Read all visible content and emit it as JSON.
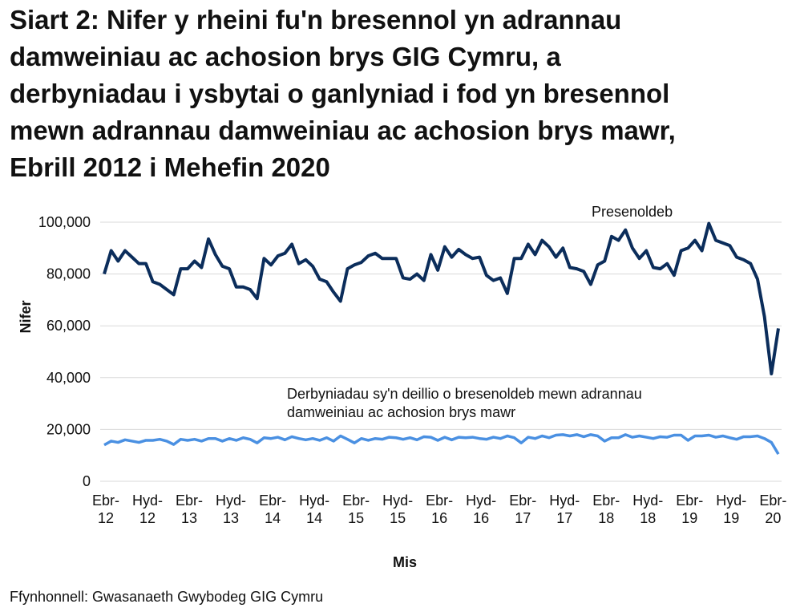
{
  "chart_data": {
    "type": "line",
    "title": "Siart 2: Nifer y rheini fu'n bresennol yn adrannau\ndamweiniau ac achosion brys GIG Cymru, a\nderbyniadau i ysbytai o ganlyniad i fod yn bresennol\nmewn adrannau damweiniau ac achosion brys mawr,\nEbrill 2012 i Mehefin 2020",
    "x_label": "Mis",
    "y_label": "Nifer",
    "source": "Ffynhonnell: Gwasanaeth Gwybodeg GIG Cymru",
    "categories": [
      "Ebr-\n12",
      null,
      null,
      null,
      null,
      null,
      "Hyd-\n12",
      null,
      null,
      null,
      null,
      null,
      "Ebr-\n13",
      null,
      null,
      null,
      null,
      null,
      "Hyd-\n13",
      null,
      null,
      null,
      null,
      null,
      "Ebr-\n14",
      null,
      null,
      null,
      null,
      null,
      "Hyd-\n14",
      null,
      null,
      null,
      null,
      null,
      "Ebr-\n15",
      null,
      null,
      null,
      null,
      null,
      "Hyd-\n15",
      null,
      null,
      null,
      null,
      null,
      "Ebr-\n16",
      null,
      null,
      null,
      null,
      null,
      "Hyd-\n16",
      null,
      null,
      null,
      null,
      null,
      "Ebr-\n17",
      null,
      null,
      null,
      null,
      null,
      "Hyd-\n17",
      null,
      null,
      null,
      null,
      null,
      "Ebr-\n18",
      null,
      null,
      null,
      null,
      null,
      "Hyd-\n18",
      null,
      null,
      null,
      null,
      null,
      "Ebr-\n19",
      null,
      null,
      null,
      null,
      null,
      "Hyd-\n19",
      null,
      null,
      null,
      null,
      null,
      "Ebr-\n20",
      null
    ],
    "series": [
      {
        "name": "Presenoldeb",
        "color": "#0b2d5b",
        "values": [
          80000,
          89000,
          85000,
          89000,
          86500,
          84000,
          84000,
          77000,
          76000,
          74000,
          72000,
          82000,
          82000,
          85000,
          82500,
          93500,
          87500,
          83000,
          82000,
          75000,
          75000,
          74000,
          70500,
          86000,
          83500,
          87000,
          88000,
          91500,
          84000,
          85500,
          83000,
          78000,
          77000,
          73000,
          69500,
          82000,
          83500,
          84500,
          87000,
          88000,
          86000,
          86000,
          86000,
          78500,
          78000,
          80000,
          77500,
          87500,
          81500,
          90500,
          86500,
          89500,
          87500,
          86000,
          86500,
          79500,
          77500,
          78500,
          72500,
          86000,
          86000,
          91500,
          87500,
          93000,
          90500,
          86500,
          90000,
          82500,
          82000,
          81000,
          76000,
          83500,
          85000,
          94500,
          93000,
          97000,
          90000,
          86000,
          89000,
          82500,
          82000,
          84000,
          79500,
          89000,
          90000,
          93000,
          89000,
          99500,
          93000,
          92000,
          91000,
          86500,
          85500,
          84000,
          78000,
          63500,
          41500,
          59000
        ]
      },
      {
        "name": "Derbyniadau sy'n deillio o bresenoldeb mewn adrannau\ndamweiniau ac achosion brys mawr",
        "color": "#4a90e2",
        "values": [
          14000,
          15500,
          15000,
          16000,
          15500,
          15000,
          15800,
          15800,
          16200,
          15500,
          14200,
          16200,
          15800,
          16200,
          15500,
          16500,
          16500,
          15500,
          16500,
          15800,
          16800,
          16200,
          14800,
          16800,
          16500,
          17000,
          16000,
          17200,
          16500,
          16000,
          16500,
          15800,
          16800,
          15500,
          17500,
          16200,
          14800,
          16500,
          15800,
          16500,
          16200,
          17000,
          16800,
          16200,
          16800,
          16000,
          17200,
          17000,
          15800,
          17000,
          16000,
          17000,
          16800,
          17000,
          16500,
          16200,
          17000,
          16500,
          17500,
          16800,
          14800,
          17000,
          16500,
          17500,
          16800,
          17800,
          18000,
          17500,
          18000,
          17200,
          18000,
          17500,
          15500,
          16800,
          16800,
          18000,
          17000,
          17500,
          17000,
          16500,
          17200,
          17000,
          17800,
          17800,
          15800,
          17500,
          17500,
          17800,
          17000,
          17500,
          16800,
          16200,
          17200,
          17200,
          17500,
          16500,
          15000,
          10500
        ]
      }
    ],
    "ylim": [
      0,
      100000
    ],
    "yticks": [
      0,
      {
        "value": 20000,
        "label": "20,000"
      },
      {
        "value": 40000,
        "label": "40,000"
      },
      {
        "value": 60000,
        "label": "60,000"
      },
      {
        "value": 80000,
        "label": "80,000"
      },
      {
        "value": 100000,
        "label": "100,000"
      }
    ],
    "grid": true
  }
}
